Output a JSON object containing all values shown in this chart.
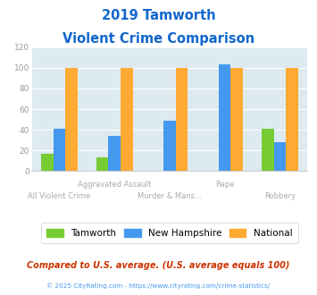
{
  "title_line1": "2019 Tamworth",
  "title_line2": "Violent Crime Comparison",
  "categories": [
    "All Violent Crime",
    "Aggravated Assault",
    "Murder & Mans...",
    "Rape",
    "Robbery"
  ],
  "cat_labels_upper": [
    "",
    "Aggravated Assault",
    "",
    "Rape",
    ""
  ],
  "cat_labels_lower": [
    "All Violent Crime",
    "",
    "Murder & Mans...",
    "",
    "Robbery"
  ],
  "tamworth": [
    17,
    13,
    0,
    0,
    41
  ],
  "new_hampshire": [
    41,
    34,
    49,
    103,
    28
  ],
  "national": [
    100,
    100,
    100,
    100,
    100
  ],
  "colors": {
    "tamworth": "#77cc33",
    "new_hampshire": "#4499ee",
    "national": "#ffaa33"
  },
  "ylim": [
    0,
    120
  ],
  "yticks": [
    0,
    20,
    40,
    60,
    80,
    100,
    120
  ],
  "plot_bg": "#ddeaf0",
  "title_color": "#1166cc",
  "legend_label1": "Tamworth",
  "legend_label2": "New Hampshire",
  "legend_label3": "National",
  "footer_text": "Compared to U.S. average. (U.S. average equals 100)",
  "copyright_text": "© 2025 CityRating.com - https://www.cityrating.com/crime-statistics/",
  "bar_width": 0.22,
  "label_color": "#aaaaaa",
  "footer_color": "#cc3300",
  "copyright_color": "#4499ee"
}
